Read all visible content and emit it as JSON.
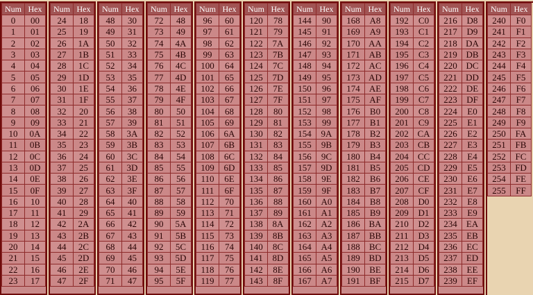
{
  "header": {
    "num_label": "Num",
    "hex_label": "Hex"
  },
  "rows_per_group": 24,
  "start": 0,
  "end": 255,
  "colors": {
    "page_background": "#e9d4b1",
    "border": "#6e0b0b",
    "header_background": "#a15454",
    "cell_background": "#cf8f8f"
  }
}
